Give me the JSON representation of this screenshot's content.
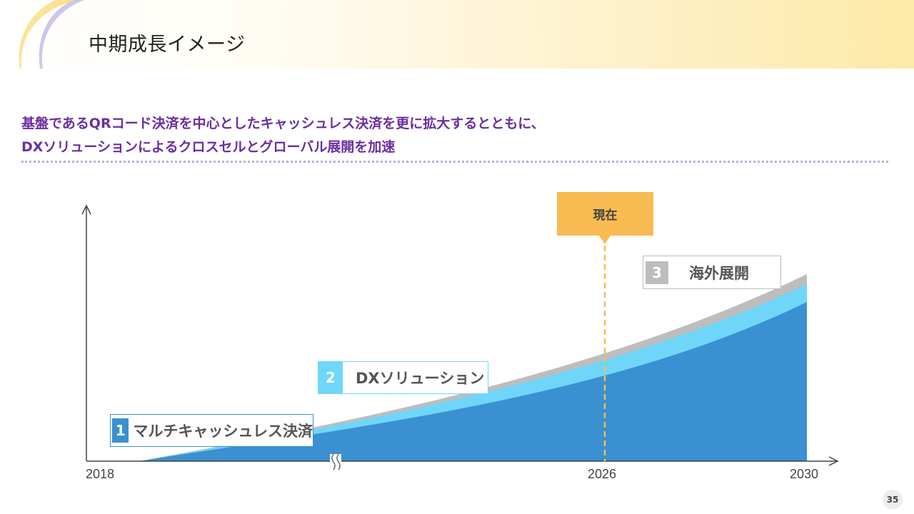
{
  "header": {
    "title": "中期成長イメージ"
  },
  "lead": {
    "line1": "基盤であるQRコード決済を中心としたキャッシュレス決済を更に拡大するとともに、",
    "line2": "DXソリューションによるクロスセルとグローバル展開を加速"
  },
  "chart_data": {
    "type": "area",
    "x_ticks": [
      "2018",
      "2026",
      "2030"
    ],
    "now_label": "現在",
    "now_year": "2026",
    "axis_break": true,
    "series": [
      {
        "num": "1",
        "name": "マルチキャッシュレス決済",
        "color": "#3a90d0"
      },
      {
        "num": "2",
        "name": "DXソリューション",
        "color": "#6fd6fa"
      },
      {
        "num": "3",
        "name": "海外展開",
        "color": "#bdbdbd"
      }
    ]
  },
  "colors": {
    "accent_purple": "#6a2ea0",
    "now_marker": "#f7bb52",
    "series1": "#3a90d0",
    "series2": "#6fd6fa",
    "series3": "#bdbdbd"
  },
  "page_number": "35"
}
